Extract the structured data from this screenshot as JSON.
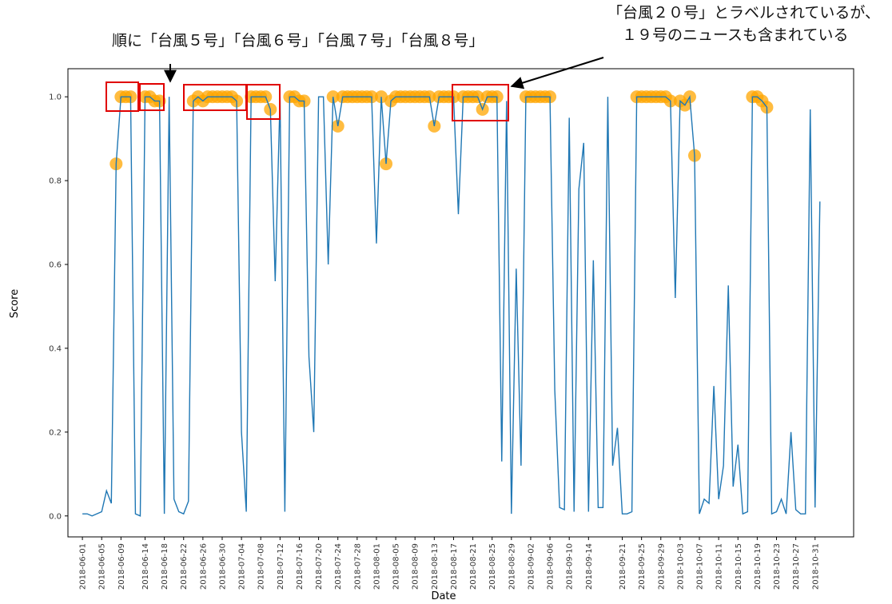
{
  "chart_data": {
    "type": "line",
    "xlabel": "Date",
    "ylabel": "Score",
    "annotations": [
      "順に「台風５号」「台風６号」「台風７号」「台風８号」",
      "「台風２０号」とラベルされているが、",
      "１９号のニュースも含まれている"
    ],
    "x": [
      "2018-06-01",
      "2018-06-02",
      "2018-06-03",
      "2018-06-04",
      "2018-06-05",
      "2018-06-06",
      "2018-06-07",
      "2018-06-08",
      "2018-06-09",
      "2018-06-10",
      "2018-06-11",
      "2018-06-12",
      "2018-06-13",
      "2018-06-14",
      "2018-06-15",
      "2018-06-16",
      "2018-06-17",
      "2018-06-18",
      "2018-06-19",
      "2018-06-20",
      "2018-06-21",
      "2018-06-22",
      "2018-06-23",
      "2018-06-24",
      "2018-06-25",
      "2018-06-26",
      "2018-06-27",
      "2018-06-28",
      "2018-06-29",
      "2018-06-30",
      "2018-07-01",
      "2018-07-02",
      "2018-07-03",
      "2018-07-04",
      "2018-07-05",
      "2018-07-06",
      "2018-07-07",
      "2018-07-08",
      "2018-07-09",
      "2018-07-10",
      "2018-07-11",
      "2018-07-12",
      "2018-07-13",
      "2018-07-14",
      "2018-07-15",
      "2018-07-16",
      "2018-07-17",
      "2018-07-18",
      "2018-07-19",
      "2018-07-20",
      "2018-07-21",
      "2018-07-22",
      "2018-07-23",
      "2018-07-24",
      "2018-07-25",
      "2018-07-26",
      "2018-07-27",
      "2018-07-28",
      "2018-07-29",
      "2018-07-30",
      "2018-07-31",
      "2018-08-01",
      "2018-08-02",
      "2018-08-03",
      "2018-08-04",
      "2018-08-05",
      "2018-08-06",
      "2018-08-07",
      "2018-08-08",
      "2018-08-09",
      "2018-08-10",
      "2018-08-11",
      "2018-08-12",
      "2018-08-13",
      "2018-08-14",
      "2018-08-15",
      "2018-08-16",
      "2018-08-17",
      "2018-08-18",
      "2018-08-19",
      "2018-08-20",
      "2018-08-21",
      "2018-08-22",
      "2018-08-23",
      "2018-08-24",
      "2018-08-25",
      "2018-08-26",
      "2018-08-27",
      "2018-08-28",
      "2018-08-29",
      "2018-08-30",
      "2018-08-31",
      "2018-09-01",
      "2018-09-02",
      "2018-09-03",
      "2018-09-04",
      "2018-09-05",
      "2018-09-06",
      "2018-09-07",
      "2018-09-08",
      "2018-09-09",
      "2018-09-10",
      "2018-09-11",
      "2018-09-12",
      "2018-09-13",
      "2018-09-14",
      "2018-09-15",
      "2018-09-16",
      "2018-09-17",
      "2018-09-18",
      "2018-09-19",
      "2018-09-20",
      "2018-09-21",
      "2018-09-22",
      "2018-09-23",
      "2018-09-24",
      "2018-09-25",
      "2018-09-26",
      "2018-09-27",
      "2018-09-28",
      "2018-09-29",
      "2018-09-30",
      "2018-10-01",
      "2018-10-02",
      "2018-10-03",
      "2018-10-04",
      "2018-10-05",
      "2018-10-06",
      "2018-10-07",
      "2018-10-08",
      "2018-10-09",
      "2018-10-10",
      "2018-10-11",
      "2018-10-12",
      "2018-10-13",
      "2018-10-14",
      "2018-10-15",
      "2018-10-16",
      "2018-10-17",
      "2018-10-18",
      "2018-10-19",
      "2018-10-20",
      "2018-10-21",
      "2018-10-22",
      "2018-10-23",
      "2018-10-24",
      "2018-10-25",
      "2018-10-26",
      "2018-10-27",
      "2018-10-28",
      "2018-10-29",
      "2018-10-30",
      "2018-10-31",
      "2018-11-01"
    ],
    "series": [
      {
        "color": "#1f77b4",
        "values": [
          0.005,
          0.005,
          0.0,
          0.005,
          0.01,
          0.06,
          0.03,
          0.84,
          1.0,
          1.0,
          1.0,
          0.005,
          0.0,
          1.0,
          1.0,
          0.99,
          0.99,
          0.005,
          1.0,
          0.04,
          0.01,
          0.005,
          0.035,
          0.99,
          1.0,
          0.99,
          1.0,
          1.0,
          1.0,
          1.0,
          1.0,
          1.0,
          0.99,
          0.2,
          0.01,
          1.0,
          1.0,
          1.0,
          1.0,
          0.97,
          0.56,
          1.0,
          0.01,
          1.0,
          1.0,
          0.99,
          0.99,
          0.38,
          0.2,
          1.0,
          1.0,
          0.6,
          1.0,
          0.93,
          1.0,
          1.0,
          1.0,
          1.0,
          1.0,
          1.0,
          1.0,
          0.65,
          1.0,
          0.84,
          0.99,
          1.0,
          1.0,
          1.0,
          1.0,
          1.0,
          1.0,
          1.0,
          1.0,
          0.93,
          1.0,
          1.0,
          1.0,
          1.0,
          0.72,
          1.0,
          1.0,
          1.0,
          1.0,
          0.97,
          1.0,
          1.0,
          1.0,
          0.13,
          0.99,
          0.005,
          0.59,
          0.12,
          1.0,
          1.0,
          1.0,
          1.0,
          1.0,
          1.0,
          0.3,
          0.02,
          0.015,
          0.95,
          0.01,
          0.78,
          0.89,
          0.01,
          0.61,
          0.02,
          0.02,
          1.0,
          0.12,
          0.21,
          0.005,
          0.005,
          0.01,
          1.0,
          1.0,
          1.0,
          1.0,
          1.0,
          1.0,
          1.0,
          0.99,
          0.52,
          0.99,
          0.98,
          1.0,
          0.86,
          0.005,
          0.04,
          0.03,
          0.31,
          0.04,
          0.12,
          0.55,
          0.07,
          0.17,
          0.005,
          0.01,
          1.0,
          1.0,
          0.99,
          0.975,
          0.005,
          0.01,
          0.04,
          0.005,
          0.2,
          0.015,
          0.005,
          0.005,
          0.97,
          0.02,
          0.75
        ]
      },
      {
        "type": "scatter",
        "color": "#ffa500",
        "values": [
          null,
          null,
          null,
          null,
          null,
          null,
          null,
          0.84,
          1.0,
          1.0,
          1.0,
          null,
          null,
          1.0,
          1.0,
          0.99,
          0.99,
          null,
          null,
          null,
          null,
          null,
          null,
          0.99,
          1.0,
          0.99,
          1.0,
          1.0,
          1.0,
          1.0,
          1.0,
          1.0,
          0.99,
          null,
          null,
          1.0,
          1.0,
          1.0,
          1.0,
          0.97,
          null,
          null,
          null,
          1.0,
          1.0,
          0.99,
          0.99,
          null,
          null,
          null,
          null,
          null,
          1.0,
          0.93,
          1.0,
          1.0,
          1.0,
          1.0,
          1.0,
          1.0,
          1.0,
          null,
          1.0,
          0.84,
          0.99,
          1.0,
          1.0,
          1.0,
          1.0,
          1.0,
          1.0,
          1.0,
          1.0,
          0.93,
          1.0,
          1.0,
          1.0,
          1.0,
          null,
          1.0,
          1.0,
          1.0,
          1.0,
          0.97,
          1.0,
          1.0,
          1.0,
          null,
          null,
          null,
          null,
          null,
          1.0,
          1.0,
          1.0,
          1.0,
          1.0,
          1.0,
          null,
          null,
          null,
          null,
          null,
          null,
          null,
          null,
          null,
          null,
          null,
          null,
          null,
          null,
          null,
          null,
          null,
          1.0,
          1.0,
          1.0,
          1.0,
          1.0,
          1.0,
          1.0,
          0.99,
          null,
          0.99,
          0.98,
          1.0,
          0.86,
          null,
          null,
          null,
          null,
          null,
          null,
          null,
          null,
          null,
          null,
          null,
          1.0,
          1.0,
          0.99,
          0.975,
          null,
          null,
          null,
          null,
          null,
          null,
          null,
          null,
          null,
          null,
          null
        ]
      }
    ],
    "xlim": [
      "2018-05-29",
      "2018-11-08"
    ],
    "xticks": [
      "2018-06-01",
      "2018-06-05",
      "2018-06-09",
      "2018-06-14",
      "2018-06-18",
      "2018-06-22",
      "2018-06-26",
      "2018-06-30",
      "2018-07-04",
      "2018-07-08",
      "2018-07-12",
      "2018-07-16",
      "2018-07-20",
      "2018-07-24",
      "2018-07-28",
      "2018-08-01",
      "2018-08-05",
      "2018-08-09",
      "2018-08-13",
      "2018-08-17",
      "2018-08-21",
      "2018-08-25",
      "2018-08-29",
      "2018-09-02",
      "2018-09-06",
      "2018-09-10",
      "2018-09-14",
      "2018-09-21",
      "2018-09-25",
      "2018-09-29",
      "2018-10-03",
      "2018-10-07",
      "2018-10-11",
      "2018-10-15",
      "2018-10-19",
      "2018-10-23",
      "2018-10-27",
      "2018-10-31"
    ],
    "ylim": [
      -0.05,
      1.067
    ],
    "yticks": [
      {
        "value": 0,
        "label": "0.0"
      },
      0.2,
      0.4,
      0.6,
      0.8,
      {
        "value": 1,
        "label": "1.0"
      }
    ],
    "grid": false
  }
}
